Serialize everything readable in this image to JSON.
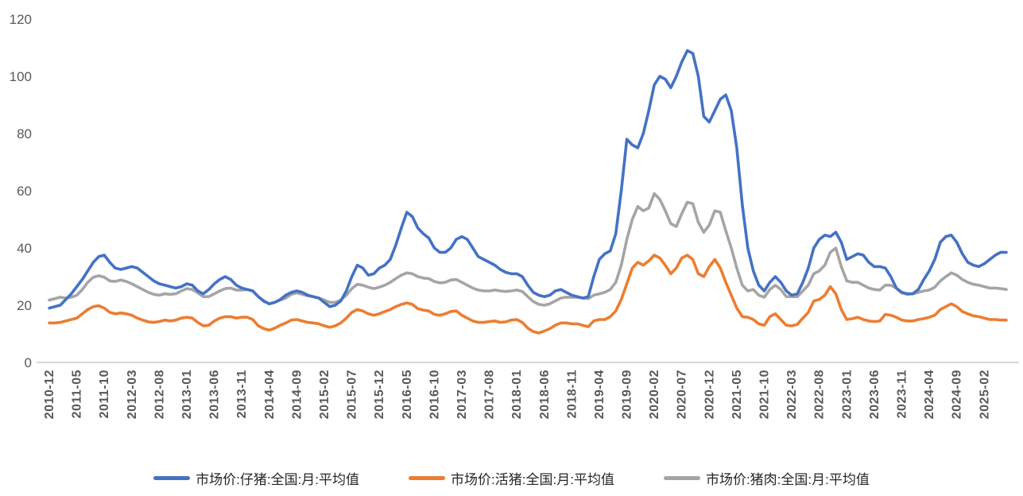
{
  "chart_data": {
    "type": "line",
    "title": "",
    "xlabel": "",
    "ylabel": "",
    "ylim": [
      0,
      120
    ],
    "y_ticks": [
      0,
      20,
      40,
      60,
      80,
      100,
      120
    ],
    "grid": false,
    "legend_position": "bottom",
    "x_start": "2010-12",
    "x_interval_months": 1,
    "x_tick_step": 5,
    "x_tick_labels": [
      "2010-12",
      "2011-05",
      "2011-10",
      "2012-03",
      "2012-08",
      "2013-01",
      "2013-06",
      "2013-11",
      "2014-04",
      "2014-09",
      "2015-02",
      "2015-07",
      "2015-12",
      "2016-05",
      "2016-10",
      "2017-03",
      "2017-08",
      "2018-01",
      "2018-06",
      "2018-11",
      "2019-04",
      "2019-09",
      "2020-02",
      "2020-07",
      "2020-12",
      "2021-05",
      "2021-10",
      "2022-03",
      "2022-08",
      "2023-01",
      "2023-06",
      "2023-11",
      "2024-04",
      "2024-09",
      "2025-02"
    ],
    "axis_color": "#BFBFBF",
    "tick_label_color": "#595959",
    "series": [
      {
        "name": "市场价:仔猪:全国:月:平均值",
        "color": "#4472C4",
        "values": [
          19,
          19.5,
          20,
          22,
          24,
          26.5,
          29,
          32,
          35,
          37,
          37.5,
          35,
          33,
          32.5,
          33,
          33.5,
          33,
          31.5,
          30,
          28.5,
          27.5,
          27,
          26.5,
          26,
          26.5,
          27.5,
          27,
          25,
          24,
          25.5,
          27.5,
          29,
          30,
          29,
          27,
          26,
          25.5,
          25,
          23,
          21.5,
          20.5,
          21,
          22,
          23.5,
          24.5,
          25,
          24.5,
          23.5,
          23,
          22.5,
          21,
          19.5,
          20,
          21.5,
          25,
          30,
          34,
          33,
          30.5,
          31,
          33,
          34,
          36,
          41,
          47,
          52.5,
          51,
          47,
          45,
          43.5,
          40,
          38.5,
          38.5,
          40,
          43,
          44,
          43,
          40,
          37,
          36,
          35,
          34,
          32.5,
          31.5,
          31,
          31,
          30,
          27,
          24.5,
          23.5,
          23,
          23.5,
          25,
          25.5,
          24.5,
          23.5,
          23,
          22.5,
          23,
          30,
          36,
          38,
          39,
          45,
          60,
          78,
          76,
          75,
          80,
          88,
          97,
          100,
          99,
          96,
          100,
          105,
          109,
          108,
          100,
          86,
          84,
          88,
          92,
          93.5,
          88,
          75,
          55,
          40,
          32,
          27,
          25,
          28,
          30,
          28,
          25,
          23.5,
          24,
          28,
          33,
          40,
          43,
          44.5,
          44,
          45.5,
          42,
          36,
          37,
          38,
          37.5,
          35,
          33.5,
          33.5,
          33,
          30,
          26,
          24.5,
          24,
          24,
          25.5,
          29,
          32,
          36,
          42,
          44,
          44.5,
          42,
          38,
          35,
          34,
          33.5,
          34.5,
          36,
          37.5,
          38.5,
          38.5
        ]
      },
      {
        "name": "市场价:活猪:全国:月:平均值",
        "color": "#ED7D31",
        "values": [
          13.8,
          13.8,
          14,
          14.5,
          15,
          15.5,
          17,
          18.5,
          19.5,
          19.8,
          19,
          17.5,
          17,
          17.3,
          17,
          16.5,
          15.5,
          14.8,
          14.2,
          14,
          14.3,
          14.8,
          14.5,
          14.8,
          15.5,
          15.8,
          15.5,
          14,
          12.8,
          13,
          14.5,
          15.5,
          16,
          16,
          15.5,
          15.8,
          15.8,
          15,
          12.8,
          11.8,
          11.3,
          12,
          13,
          13.8,
          14.8,
          15,
          14.5,
          14,
          13.8,
          13.5,
          12.8,
          12.3,
          12.8,
          13.8,
          15.5,
          17.5,
          18.5,
          18,
          17,
          16.5,
          17,
          17.8,
          18.5,
          19.5,
          20.3,
          20.8,
          20.3,
          18.8,
          18.3,
          18,
          16.8,
          16.5,
          17,
          17.8,
          18,
          16.5,
          15.5,
          14.5,
          14,
          14,
          14.3,
          14.5,
          14,
          14.2,
          14.8,
          15,
          14,
          12,
          10.8,
          10.3,
          11,
          11.8,
          13,
          13.8,
          13.8,
          13.5,
          13.5,
          13,
          12.5,
          14.5,
          15,
          15,
          16,
          18,
          22,
          27.5,
          33,
          35,
          34,
          35.5,
          37.5,
          36.5,
          34,
          31,
          33,
          36.5,
          37.5,
          36,
          31,
          30,
          33.5,
          36,
          33,
          28,
          23.5,
          19,
          16,
          15.8,
          15,
          13.5,
          13,
          16,
          17,
          15,
          13,
          12.8,
          13.3,
          15.5,
          17.5,
          21.5,
          22,
          23.5,
          26.5,
          24,
          18.5,
          15,
          15.3,
          15.8,
          15,
          14.5,
          14.3,
          14.5,
          16.8,
          16.5,
          15.8,
          14.8,
          14.5,
          14.5,
          15,
          15.3,
          15.8,
          16.5,
          18.5,
          19.5,
          20.5,
          19.5,
          17.8,
          17,
          16.3,
          16,
          15.5,
          15,
          15,
          14.8,
          14.8
        ]
      },
      {
        "name": "市场价:猪肉:全国:月:平均值",
        "color": "#A5A5A5",
        "values": [
          21.8,
          22.3,
          22.8,
          22.5,
          22.8,
          23.5,
          25.5,
          28,
          29.8,
          30.3,
          29.8,
          28.5,
          28.3,
          28.8,
          28.3,
          27.5,
          26.5,
          25.5,
          24.5,
          23.8,
          23.5,
          24,
          23.8,
          24,
          25,
          25.8,
          25.5,
          24.3,
          23,
          23,
          24,
          25,
          25.8,
          26,
          25.3,
          25.3,
          25.5,
          25,
          23,
          21.3,
          20.5,
          21,
          21.8,
          22.5,
          23.8,
          24.3,
          23.8,
          23.3,
          23,
          22.5,
          21.8,
          21,
          21,
          21.8,
          23.5,
          25.8,
          27.3,
          27,
          26.3,
          25.8,
          26.3,
          27,
          28,
          29.3,
          30.5,
          31.3,
          31,
          30,
          29.5,
          29.3,
          28.3,
          27.8,
          28,
          28.8,
          29,
          28,
          27,
          26,
          25.3,
          25,
          25,
          25.3,
          25,
          24.8,
          25,
          25.3,
          24.8,
          23,
          21.3,
          20.3,
          20,
          20.5,
          21.5,
          22.5,
          22.8,
          22.8,
          22.8,
          22.5,
          22.3,
          23.5,
          24,
          24.5,
          25.5,
          28,
          34,
          43,
          50,
          54.5,
          53,
          54,
          59,
          57,
          53,
          48.5,
          47.5,
          52,
          56,
          55.5,
          49,
          45.5,
          48,
          53,
          52.5,
          46,
          40,
          33,
          27,
          25,
          25.5,
          23.5,
          22.8,
          25.5,
          27,
          25.5,
          23,
          23,
          23,
          25,
          27,
          31,
          32,
          34,
          38.5,
          40,
          33.5,
          28.5,
          28,
          28,
          27,
          26,
          25.5,
          25.3,
          27,
          27,
          26,
          24.3,
          23.8,
          24,
          24.5,
          25,
          25.3,
          26.3,
          28.5,
          30,
          31.3,
          30.5,
          29,
          28,
          27.3,
          27,
          26.5,
          26,
          26,
          25.8,
          25.5
        ]
      }
    ]
  }
}
